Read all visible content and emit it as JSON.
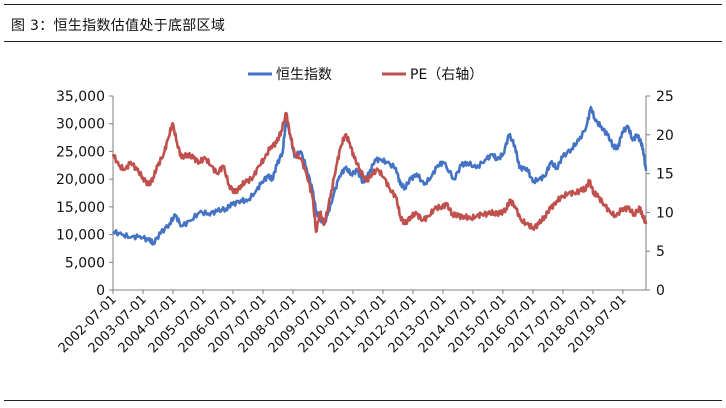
{
  "caption": "图 3：恒生指数估值处于底部区域",
  "chart_data": {
    "type": "line",
    "title": "",
    "legend_position": "top-center",
    "grid": false,
    "x_labels": [
      "2002-07-01",
      "2003-07-01",
      "2004-07-01",
      "2005-07-01",
      "2006-07-01",
      "2007-07-01",
      "2008-07-01",
      "2009-07-01",
      "2010-07-01",
      "2011-07-01",
      "2012-07-01",
      "2013-07-01",
      "2014-07-01",
      "2015-07-01",
      "2016-07-01",
      "2017-07-01",
      "2018-07-01",
      "2019-07-01"
    ],
    "x_range": [
      2002.0,
      2019.9
    ],
    "y_left": {
      "range": [
        0,
        35000
      ],
      "ticks": [
        "0",
        "5,000",
        "10,000",
        "15,000",
        "20,000",
        "25,000",
        "30,000",
        "35,000"
      ],
      "tick_values": [
        0,
        5000,
        10000,
        15000,
        20000,
        25000,
        30000,
        35000
      ]
    },
    "y_right": {
      "range": [
        0,
        25
      ],
      "ticks": [
        "0",
        "5",
        "10",
        "15",
        "20",
        "25"
      ],
      "tick_values": [
        0,
        5,
        10,
        15,
        20,
        25
      ]
    },
    "series": [
      {
        "name": "恒生指数",
        "axis": "left",
        "color": "#4472C4",
        "points": [
          [
            2002.0,
            10500
          ],
          [
            2002.3,
            10000
          ],
          [
            2002.6,
            9500
          ],
          [
            2002.9,
            9700
          ],
          [
            2003.2,
            9000
          ],
          [
            2003.35,
            8500
          ],
          [
            2003.6,
            10200
          ],
          [
            2003.9,
            12000
          ],
          [
            2004.1,
            13500
          ],
          [
            2004.3,
            11500
          ],
          [
            2004.6,
            12500
          ],
          [
            2004.9,
            14000
          ],
          [
            2005.2,
            13800
          ],
          [
            2005.5,
            14200
          ],
          [
            2005.8,
            14700
          ],
          [
            2006.0,
            15400
          ],
          [
            2006.3,
            16200
          ],
          [
            2006.5,
            16000
          ],
          [
            2006.8,
            17800
          ],
          [
            2007.0,
            19500
          ],
          [
            2007.2,
            20500
          ],
          [
            2007.35,
            20000
          ],
          [
            2007.5,
            22500
          ],
          [
            2007.7,
            25000
          ],
          [
            2007.82,
            31000
          ],
          [
            2007.95,
            28000
          ],
          [
            2008.1,
            24000
          ],
          [
            2008.3,
            25000
          ],
          [
            2008.5,
            22000
          ],
          [
            2008.7,
            18000
          ],
          [
            2008.83,
            14000
          ],
          [
            2008.95,
            13000
          ],
          [
            2009.1,
            12000
          ],
          [
            2009.2,
            13500
          ],
          [
            2009.4,
            17000
          ],
          [
            2009.6,
            20500
          ],
          [
            2009.8,
            22000
          ],
          [
            2010.0,
            21000
          ],
          [
            2010.2,
            21500
          ],
          [
            2010.4,
            19500
          ],
          [
            2010.6,
            21000
          ],
          [
            2010.8,
            23500
          ],
          [
            2011.0,
            23500
          ],
          [
            2011.2,
            23000
          ],
          [
            2011.5,
            22000
          ],
          [
            2011.65,
            19000
          ],
          [
            2011.8,
            18500
          ],
          [
            2012.0,
            20000
          ],
          [
            2012.2,
            21000
          ],
          [
            2012.45,
            19000
          ],
          [
            2012.7,
            20500
          ],
          [
            2012.9,
            22500
          ],
          [
            2013.1,
            23000
          ],
          [
            2013.45,
            20000
          ],
          [
            2013.7,
            22500
          ],
          [
            2013.9,
            23000
          ],
          [
            2014.2,
            22000
          ],
          [
            2014.5,
            23500
          ],
          [
            2014.75,
            24500
          ],
          [
            2014.9,
            23500
          ],
          [
            2015.1,
            24500
          ],
          [
            2015.3,
            28000
          ],
          [
            2015.5,
            26000
          ],
          [
            2015.65,
            22000
          ],
          [
            2015.9,
            22000
          ],
          [
            2016.1,
            19500
          ],
          [
            2016.3,
            20000
          ],
          [
            2016.5,
            20500
          ],
          [
            2016.7,
            23000
          ],
          [
            2016.9,
            22000
          ],
          [
            2017.1,
            24000
          ],
          [
            2017.4,
            25500
          ],
          [
            2017.65,
            27000
          ],
          [
            2017.9,
            29500
          ],
          [
            2018.05,
            33000
          ],
          [
            2018.2,
            30500
          ],
          [
            2018.4,
            29500
          ],
          [
            2018.6,
            28000
          ],
          [
            2018.8,
            26000
          ],
          [
            2018.95,
            25500
          ],
          [
            2019.1,
            28500
          ],
          [
            2019.3,
            29500
          ],
          [
            2019.45,
            27000
          ],
          [
            2019.6,
            28000
          ],
          [
            2019.7,
            27000
          ],
          [
            2019.8,
            25500
          ],
          [
            2019.9,
            21500
          ]
        ]
      },
      {
        "name": "PE（右轴）",
        "axis": "right",
        "color": "#C0504D",
        "points": [
          [
            2002.0,
            17.5
          ],
          [
            2002.2,
            16
          ],
          [
            2002.4,
            15.5
          ],
          [
            2002.6,
            16.5
          ],
          [
            2002.8,
            15.5
          ],
          [
            2003.0,
            14.5
          ],
          [
            2003.2,
            13.5
          ],
          [
            2003.35,
            14.5
          ],
          [
            2003.5,
            16
          ],
          [
            2003.7,
            17.5
          ],
          [
            2003.85,
            19.5
          ],
          [
            2004.0,
            21.5
          ],
          [
            2004.15,
            19
          ],
          [
            2004.3,
            17
          ],
          [
            2004.5,
            17.5
          ],
          [
            2004.7,
            17
          ],
          [
            2004.9,
            16.5
          ],
          [
            2005.1,
            17
          ],
          [
            2005.3,
            16
          ],
          [
            2005.5,
            15
          ],
          [
            2005.7,
            16
          ],
          [
            2005.9,
            13.5
          ],
          [
            2006.1,
            12.5
          ],
          [
            2006.3,
            13.5
          ],
          [
            2006.5,
            14
          ],
          [
            2006.7,
            14.5
          ],
          [
            2006.9,
            16
          ],
          [
            2007.1,
            17
          ],
          [
            2007.3,
            18.5
          ],
          [
            2007.5,
            19
          ],
          [
            2007.65,
            20.5
          ],
          [
            2007.82,
            22.8
          ],
          [
            2007.95,
            20
          ],
          [
            2008.1,
            17.5
          ],
          [
            2008.3,
            17
          ],
          [
            2008.5,
            15
          ],
          [
            2008.7,
            12
          ],
          [
            2008.82,
            7.5
          ],
          [
            2008.95,
            10
          ],
          [
            2009.1,
            8.5
          ],
          [
            2009.3,
            12
          ],
          [
            2009.5,
            16
          ],
          [
            2009.65,
            18.5
          ],
          [
            2009.8,
            20
          ],
          [
            2009.95,
            19
          ],
          [
            2010.1,
            17
          ],
          [
            2010.3,
            15.5
          ],
          [
            2010.5,
            14
          ],
          [
            2010.7,
            15
          ],
          [
            2010.9,
            15.5
          ],
          [
            2011.1,
            14.5
          ],
          [
            2011.3,
            13
          ],
          [
            2011.5,
            12
          ],
          [
            2011.65,
            9.5
          ],
          [
            2011.8,
            8.5
          ],
          [
            2012.0,
            9.5
          ],
          [
            2012.2,
            9.8
          ],
          [
            2012.4,
            9
          ],
          [
            2012.6,
            9.5
          ],
          [
            2012.8,
            10.5
          ],
          [
            2013.0,
            10.7
          ],
          [
            2013.2,
            11
          ],
          [
            2013.4,
            9.8
          ],
          [
            2013.6,
            9.5
          ],
          [
            2013.8,
            9.5
          ],
          [
            2014.0,
            9.2
          ],
          [
            2014.2,
            9.5
          ],
          [
            2014.4,
            9.8
          ],
          [
            2014.6,
            9.8
          ],
          [
            2014.8,
            10
          ],
          [
            2015.0,
            9.8
          ],
          [
            2015.2,
            10.5
          ],
          [
            2015.35,
            11.5
          ],
          [
            2015.5,
            10.8
          ],
          [
            2015.7,
            9
          ],
          [
            2015.9,
            8.5
          ],
          [
            2016.1,
            8
          ],
          [
            2016.3,
            8.5
          ],
          [
            2016.5,
            9.5
          ],
          [
            2016.7,
            10.5
          ],
          [
            2016.9,
            11.5
          ],
          [
            2017.1,
            12
          ],
          [
            2017.3,
            12.5
          ],
          [
            2017.5,
            12.5
          ],
          [
            2017.7,
            12.8
          ],
          [
            2017.85,
            13
          ],
          [
            2018.0,
            14
          ],
          [
            2018.15,
            12.5
          ],
          [
            2018.3,
            12
          ],
          [
            2018.5,
            11
          ],
          [
            2018.7,
            10
          ],
          [
            2018.9,
            9.5
          ],
          [
            2019.1,
            10.5
          ],
          [
            2019.3,
            10.5
          ],
          [
            2019.5,
            9.8
          ],
          [
            2019.7,
            10.5
          ],
          [
            2019.8,
            9.5
          ],
          [
            2019.9,
            8.5
          ]
        ]
      }
    ]
  }
}
